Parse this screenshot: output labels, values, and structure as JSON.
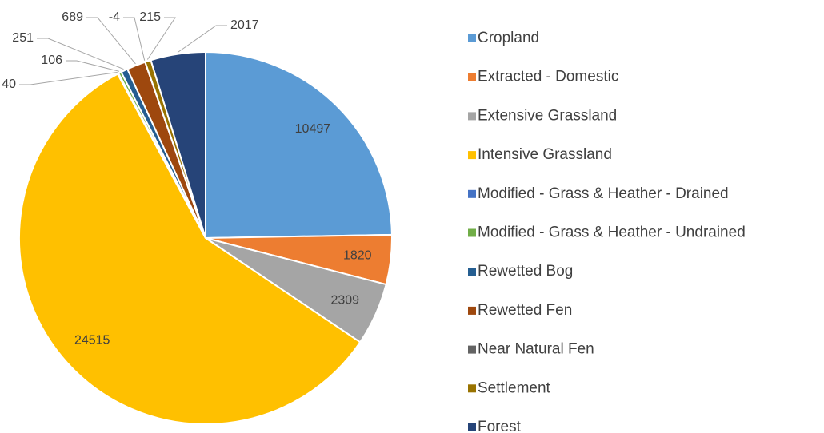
{
  "chart_data": {
    "type": "pie",
    "categories": [
      "Cropland",
      "Extracted - Domestic",
      "Extensive Grassland",
      "Intensive Grassland",
      "Modified - Grass & Heather - Drained",
      "Modified - Grass & Heather - Undrained",
      "Rewetted Bog",
      "Rewetted Fen",
      "Near Natural Fen",
      "Settlement",
      "Forest"
    ],
    "values": [
      10497,
      1820,
      2309,
      24515,
      40,
      106,
      251,
      689,
      -4,
      215,
      2017
    ],
    "colors": [
      "#5b9bd5",
      "#ed7d31",
      "#a5a5a5",
      "#ffc000",
      "#4472c4",
      "#70ad47",
      "#255e91",
      "#9e480e",
      "#636363",
      "#997300",
      "#264478"
    ],
    "legend": "right"
  }
}
